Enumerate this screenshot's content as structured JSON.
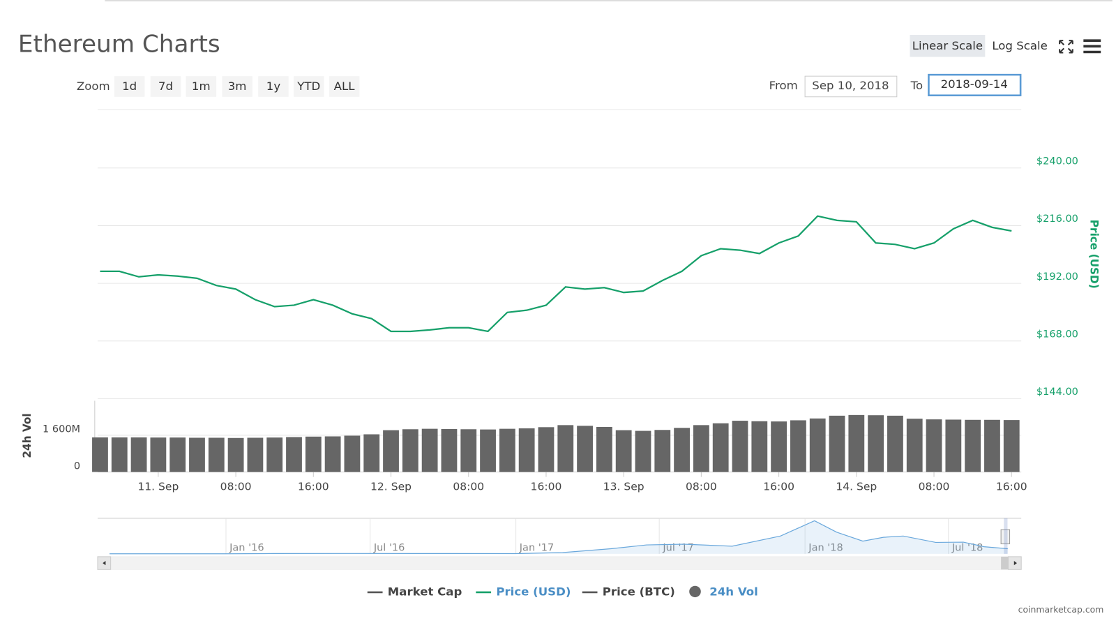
{
  "ui": {
    "title": "Ethereum Charts",
    "scale_buttons": [
      "Linear Scale",
      "Log Scale"
    ],
    "active_scale": "Linear Scale",
    "zoom_label": "Zoom",
    "zoom_buttons": [
      "1d",
      "7d",
      "1m",
      "3m",
      "1y",
      "YTD",
      "ALL"
    ],
    "from_label": "From",
    "from_value": "Sep 10, 2018",
    "to_label": "To",
    "to_value": "2018-09-14",
    "credit": "coinmarketcap.com"
  },
  "chart_data": [
    {
      "type": "line",
      "x": [
        "2018-09-10T18:00",
        "2018-09-10T20:00",
        "2018-09-10T22:00",
        "2018-09-11T00:00",
        "2018-09-11T02:00",
        "2018-09-11T04:00",
        "2018-09-11T06:00",
        "2018-09-11T08:00",
        "2018-09-11T10:00",
        "2018-09-11T12:00",
        "2018-09-11T14:00",
        "2018-09-11T16:00",
        "2018-09-11T18:00",
        "2018-09-11T20:00",
        "2018-09-11T22:00",
        "2018-09-12T00:00",
        "2018-09-12T02:00",
        "2018-09-12T04:00",
        "2018-09-12T06:00",
        "2018-09-12T08:00",
        "2018-09-12T10:00",
        "2018-09-12T12:00",
        "2018-09-12T14:00",
        "2018-09-12T16:00",
        "2018-09-12T18:00",
        "2018-09-12T20:00",
        "2018-09-12T22:00",
        "2018-09-13T00:00",
        "2018-09-13T02:00",
        "2018-09-13T04:00",
        "2018-09-13T06:00",
        "2018-09-13T08:00",
        "2018-09-13T10:00",
        "2018-09-13T12:00",
        "2018-09-13T14:00",
        "2018-09-13T16:00",
        "2018-09-13T18:00",
        "2018-09-13T20:00",
        "2018-09-13T22:00",
        "2018-09-14T00:00",
        "2018-09-14T02:00",
        "2018-09-14T04:00",
        "2018-09-14T06:00",
        "2018-09-14T08:00",
        "2018-09-14T10:00",
        "2018-09-14T12:00",
        "2018-09-14T14:00",
        "2018-09-14T16:00"
      ],
      "xlim": [
        "2018-09-10T17:45",
        "2018-09-14T17:00"
      ],
      "xticks": [
        {
          "value": "2018-09-11T00:00",
          "label": "11. Sep"
        },
        {
          "value": "2018-09-11T08:00",
          "label": "08:00"
        },
        {
          "value": "2018-09-11T16:00",
          "label": "16:00"
        },
        {
          "value": "2018-09-12T00:00",
          "label": "12. Sep"
        },
        {
          "value": "2018-09-12T08:00",
          "label": "08:00"
        },
        {
          "value": "2018-09-12T16:00",
          "label": "16:00"
        },
        {
          "value": "2018-09-13T00:00",
          "label": "13. Sep"
        },
        {
          "value": "2018-09-13T08:00",
          "label": "08:00"
        },
        {
          "value": "2018-09-13T16:00",
          "label": "16:00"
        },
        {
          "value": "2018-09-14T00:00",
          "label": "14. Sep"
        },
        {
          "value": "2018-09-14T08:00",
          "label": "08:00"
        },
        {
          "value": "2018-09-14T16:00",
          "label": "16:00"
        }
      ],
      "ylabel": "Price (USD)",
      "ylim": [
        144,
        264
      ],
      "yticks": [
        {
          "value": 144,
          "label": "$144.00"
        },
        {
          "value": 168,
          "label": "$168.00"
        },
        {
          "value": 192,
          "label": "$192.00"
        },
        {
          "value": 216,
          "label": "$216.00"
        },
        {
          "value": 240,
          "label": "$240.00"
        }
      ],
      "y2label": "24h Vol",
      "y2lim": [
        0,
        3100000000
      ],
      "y2ticks": [
        0,
        {
          "value": 1600000000,
          "label": "1 600M"
        }
      ],
      "grid": true,
      "series": [
        {
          "name": "Market Cap",
          "color": "#555555",
          "symbol": "line",
          "visible": false
        },
        {
          "name": "Price (USD)",
          "color": "#16a06a",
          "symbol": "line",
          "visible": true,
          "values": [
            197.0,
            197.0,
            194.7,
            195.5,
            195.0,
            194.1,
            191.1,
            189.6,
            185.2,
            182.3,
            182.9,
            185.2,
            182.9,
            179.3,
            177.3,
            172.0,
            172.0,
            172.6,
            173.5,
            173.5,
            172.0,
            179.9,
            180.8,
            182.9,
            190.5,
            189.6,
            190.2,
            188.2,
            188.8,
            193.2,
            197.0,
            203.5,
            206.4,
            205.8,
            204.4,
            208.8,
            211.7,
            220.0,
            218.2,
            217.6,
            208.8,
            208.2,
            206.4,
            208.8,
            214.7,
            218.2,
            215.3,
            213.8
          ]
        },
        {
          "name": "Price (BTC)",
          "color": "#555555",
          "symbol": "line",
          "visible": false
        },
        {
          "name": "24h Vol",
          "color": "#666666",
          "symbol": "circle",
          "visible": true,
          "axis": "y2",
          "type": "column",
          "values": [
            1506000000,
            1506000000,
            1506000000,
            1500000000,
            1500000000,
            1490000000,
            1490000000,
            1480000000,
            1490000000,
            1500000000,
            1520000000,
            1540000000,
            1550000000,
            1580000000,
            1640000000,
            1820000000,
            1860000000,
            1880000000,
            1870000000,
            1860000000,
            1850000000,
            1880000000,
            1900000000,
            1950000000,
            2040000000,
            2010000000,
            1960000000,
            1820000000,
            1790000000,
            1830000000,
            1920000000,
            2040000000,
            2120000000,
            2230000000,
            2210000000,
            2200000000,
            2250000000,
            2330000000,
            2450000000,
            2480000000,
            2470000000,
            2450000000,
            2320000000,
            2290000000,
            2280000000,
            2270000000,
            2270000000,
            2260000000
          ]
        }
      ]
    },
    {
      "type": "area",
      "color": "#6aa8dc",
      "x": [
        "2015-08-07",
        "2015-11-01",
        "2016-01-01",
        "2016-03-01",
        "2016-06-01",
        "2016-09-01",
        "2017-01-01",
        "2017-03-01",
        "2017-05-01",
        "2017-06-15",
        "2017-08-01",
        "2017-10-01",
        "2017-12-01",
        "2018-01-13",
        "2018-02-10",
        "2018-03-15",
        "2018-04-10",
        "2018-05-05",
        "2018-06-15",
        "2018-07-20",
        "2018-08-15",
        "2018-09-14"
      ],
      "values": [
        1,
        1,
        1,
        11,
        14,
        12,
        10,
        50,
        200,
        350,
        380,
        300,
        700,
        1300,
        850,
        500,
        650,
        700,
        450,
        460,
        280,
        200
      ],
      "xlim": [
        "2015-07-23",
        "2018-10-01"
      ],
      "ylim": [
        0,
        1400
      ],
      "xticks": [
        {
          "value": "2016-01-01",
          "label": "Jan '16"
        },
        {
          "value": "2016-07-01",
          "label": "Jul '16"
        },
        {
          "value": "2017-01-01",
          "label": "Jan '17"
        },
        {
          "value": "2017-07-01",
          "label": "Jul '17"
        },
        {
          "value": "2018-01-01",
          "label": "Jan '18"
        },
        {
          "value": "2018-07-01",
          "label": "Jul '18"
        }
      ]
    }
  ]
}
